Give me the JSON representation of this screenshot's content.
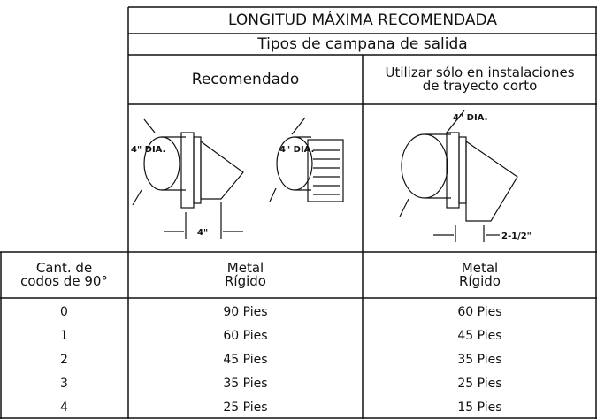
{
  "header": {
    "title": "LONGITUD MÁXIMA RECOMENDADA",
    "subtitle": "Tipos de campana de salida",
    "columns": [
      "Recomendado",
      "Utilizar sólo en instalaciones\nde trayecto corto"
    ]
  },
  "illustrations": {
    "labels": [
      "4\" DIA.",
      "4\" DIA.",
      "4\"",
      "4\" DIA.",
      "2-1/2\""
    ]
  },
  "table": {
    "header": [
      "Cant. de\ncodos de 90°",
      "Metal\nRígido",
      "Metal\nRígido"
    ],
    "rows": [
      [
        "0",
        "90 Pies",
        "60 Pies"
      ],
      [
        "1",
        "60 Pies",
        "45 Pies"
      ],
      [
        "2",
        "45 Pies",
        "35 Pies"
      ],
      [
        "3",
        "35 Pies",
        "25 Pies"
      ],
      [
        "4",
        "25 Pies",
        "15 Pies"
      ]
    ]
  }
}
